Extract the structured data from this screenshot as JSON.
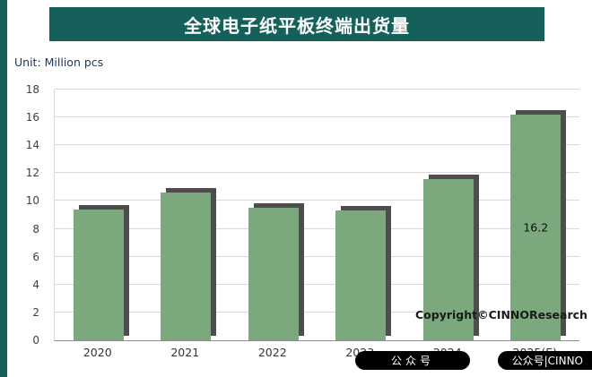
{
  "page": {
    "title": "全球电子纸平板终端出货量",
    "unit_label": "Unit: Million pcs",
    "copyright": "Copyright©CINNOResearch",
    "watermark_left": "公众号",
    "watermark_right": "公众号|CINNO"
  },
  "chart_data": {
    "type": "bar",
    "title": "全球电子纸平板终端出货量",
    "unit": "Million pcs",
    "categories": [
      "2020",
      "2021",
      "2022",
      "2023",
      "2024",
      "2025(E)"
    ],
    "values": [
      9.4,
      10.6,
      9.5,
      9.3,
      11.6,
      16.2
    ],
    "value_labels": [
      "",
      "",
      "",
      "",
      "",
      "16.2"
    ],
    "ylim": [
      0,
      18
    ],
    "yticks": [
      0,
      2,
      4,
      6,
      8,
      10,
      12,
      14,
      16,
      18
    ],
    "grid": true,
    "legend": "none",
    "bar_color": "#7CA87E",
    "shadow_color": "#4D4D4D",
    "banner_color": "#15605A"
  }
}
